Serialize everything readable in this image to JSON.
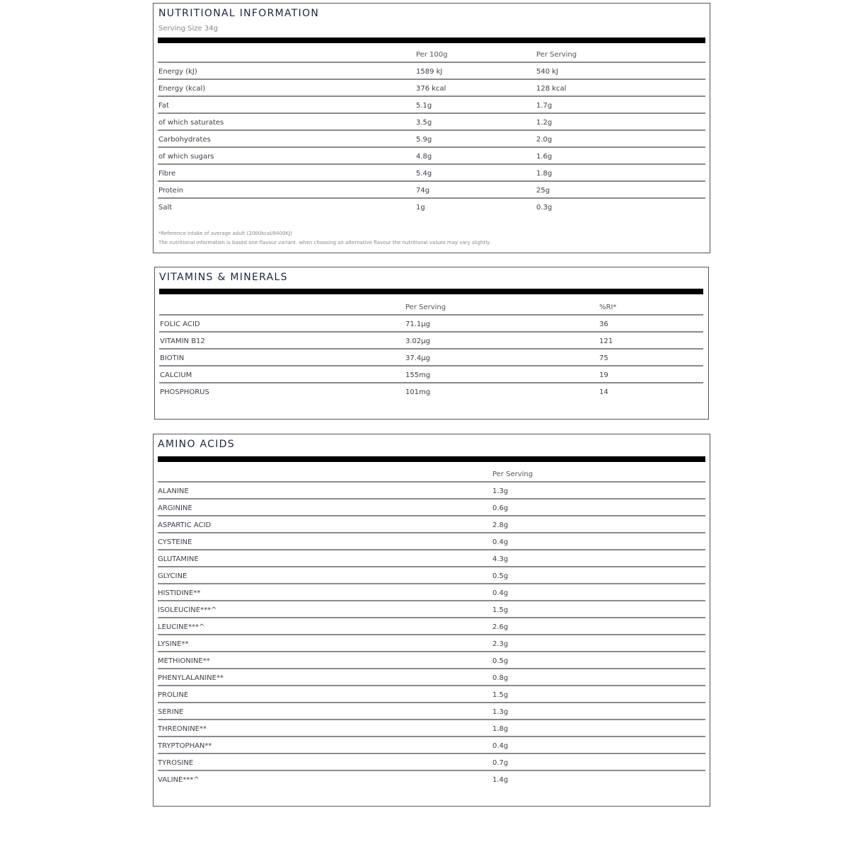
{
  "nutrition": {
    "title": "NUTRITIONAL INFORMATION",
    "serving_size": "Serving Size 34g",
    "headers": [
      "",
      "Per 100g",
      "Per Serving"
    ],
    "rows": [
      [
        "Energy (kJ)",
        "1589 kJ",
        "540 kJ"
      ],
      [
        "Energy (kcal)",
        "376 kcal",
        "128 kcal"
      ],
      [
        "Fat",
        "5.1g",
        "1.7g"
      ],
      [
        "of which saturates",
        "3.5g",
        "1.2g"
      ],
      [
        "Carbohydrates",
        "5.9g",
        "2.0g"
      ],
      [
        "of which sugars",
        "4.8g",
        "1.6g"
      ],
      [
        "Fibre",
        "5.4g",
        "1.8g"
      ],
      [
        "Protein",
        "74g",
        "25g"
      ],
      [
        "Salt",
        "1g",
        "0.3g"
      ]
    ],
    "footnote_1": "*Reference intake of average adult (2000kcal/8400KJ)",
    "footnote_2": "The nutritional information is based one flavour variant. when choosing an alternative flavour the nutritional values may vary slightly."
  },
  "vitamins": {
    "title": "VITAMINS & MINERALS",
    "headers": [
      "",
      "Per Serving",
      "%RI*"
    ],
    "rows": [
      [
        "FOLIC ACID",
        "71.1µg",
        "36"
      ],
      [
        "VITAMIN B12",
        "3.02µg",
        "121"
      ],
      [
        "BIOTIN",
        "37.4µg",
        "75"
      ],
      [
        "CALCIUM",
        "155mg",
        "19"
      ],
      [
        "PHOSPHORUS",
        "101mg",
        "14"
      ]
    ]
  },
  "amino": {
    "title": "AMINO ACIDS",
    "headers": [
      "",
      "Per Serving"
    ],
    "rows": [
      [
        "ALANINE",
        "1.3g"
      ],
      [
        "ARGININE",
        "0.6g"
      ],
      [
        "ASPARTIC ACID",
        "2.8g"
      ],
      [
        "CYSTEINE",
        "0.4g"
      ],
      [
        "GLUTAMINE",
        "4.3g"
      ],
      [
        "GLYCINE",
        "0.5g"
      ],
      [
        "HISTIDINE**",
        "0.4g"
      ],
      [
        "ISOLEUCINE***^",
        "1.5g"
      ],
      [
        "LEUCINE***^",
        "2.6g"
      ],
      [
        "LYSINE**",
        "2.3g"
      ],
      [
        "METHIONINE**",
        "0.5g"
      ],
      [
        "PHENYLALANINE**",
        "0.8g"
      ],
      [
        "PROLINE",
        "1.5g"
      ],
      [
        "SERINE",
        "1.3g"
      ],
      [
        "THREONINE**",
        "1.8g"
      ],
      [
        "TRYPTOPHAN**",
        "0.4g"
      ],
      [
        "TYROSINE",
        "0.7g"
      ],
      [
        "VALINE***^",
        "1.4g"
      ]
    ]
  }
}
